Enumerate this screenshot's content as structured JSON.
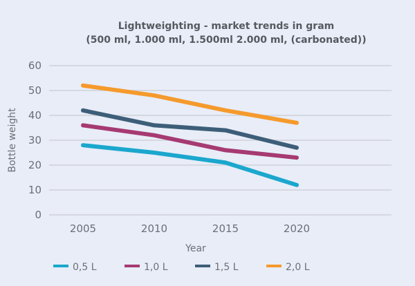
{
  "chart_data": {
    "type": "line",
    "title": "Lightweighting - market trends in gram",
    "subtitle": "(500 ml, 1.000 ml, 1.500ml 2.000 ml, (carbonated))",
    "xlabel": "Year",
    "ylabel": "Bottle weight",
    "x": [
      "2005",
      "2010",
      "2015",
      "2020"
    ],
    "ylim": [
      0,
      60
    ],
    "yticks": [
      0,
      10,
      20,
      30,
      40,
      50,
      60
    ],
    "grid": true,
    "legend_position": "bottom",
    "series": [
      {
        "name": "0,5 L",
        "color": "#1ba7cd",
        "values": [
          28,
          25,
          21,
          12
        ]
      },
      {
        "name": "1,0 L",
        "color": "#a63a72",
        "values": [
          36,
          32,
          26,
          23
        ]
      },
      {
        "name": "1,5 L",
        "color": "#3d5e78",
        "values": [
          42,
          36,
          34,
          27
        ]
      },
      {
        "name": "2,0 L",
        "color": "#f59a2c",
        "values": [
          52,
          48,
          42,
          37
        ]
      }
    ]
  }
}
